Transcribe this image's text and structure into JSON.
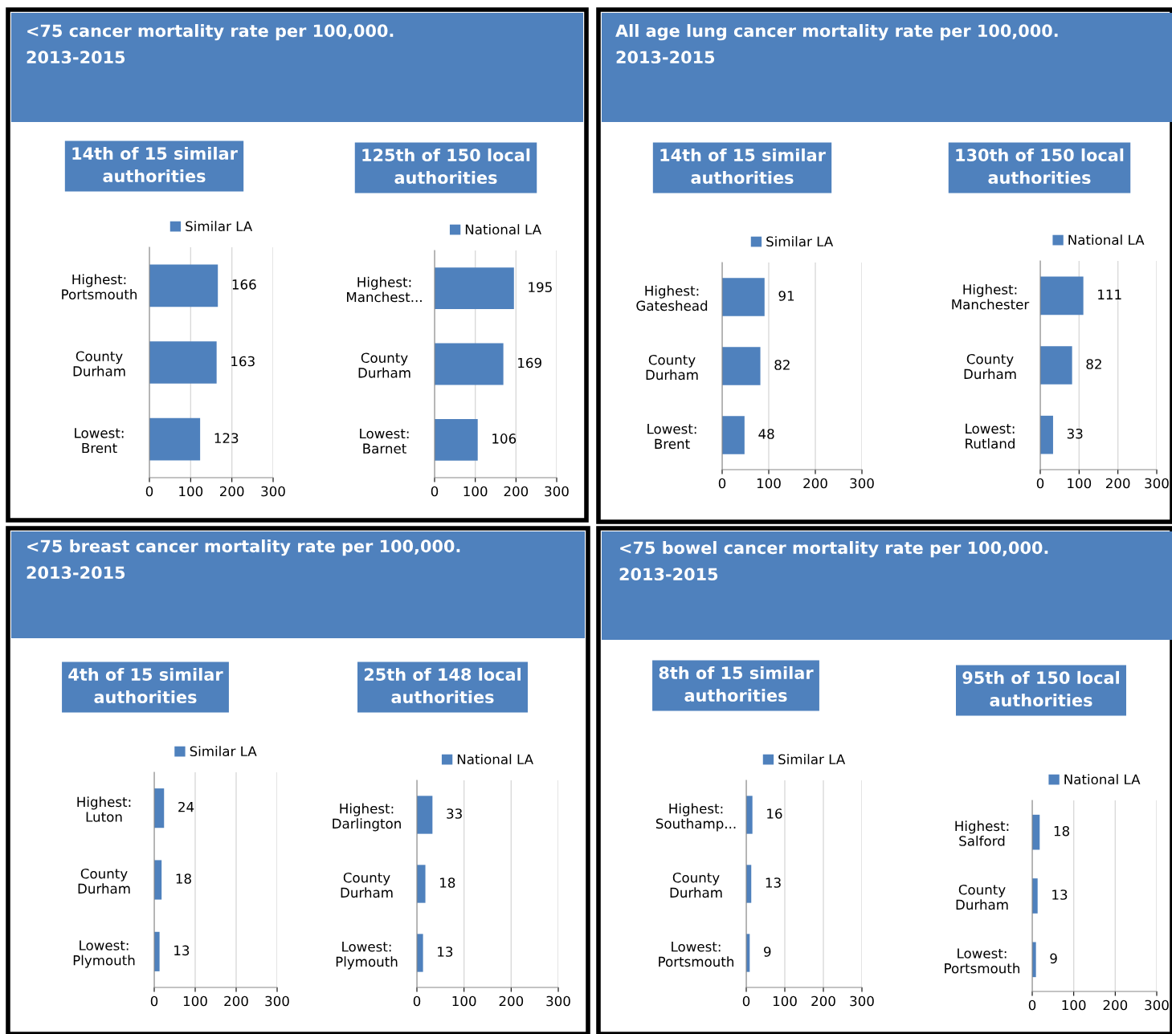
{
  "chart_data": [
    {
      "type": "bar",
      "orientation": "horizontal",
      "title": "14th of 15 similar\nauthorities",
      "annotations": [
        "<75 cancer mortality rate per 100,000.\n2013-2015"
      ],
      "categories": [
        "Highest:\nPortsmouth",
        "County\nDurham",
        "Lowest:\nBrent"
      ],
      "series": [
        {
          "name": "Similar LA",
          "color": "#4f81bd",
          "values": [
            166,
            163,
            123
          ]
        }
      ],
      "xlim": [
        0,
        300
      ],
      "xticks": [
        0,
        100,
        200,
        300
      ],
      "grid": "x",
      "legend": "top",
      "data_labels": true
    },
    {
      "type": "bar",
      "orientation": "horizontal",
      "title": "125th of 150 local\nauthorities",
      "categories": [
        "Highest:\nManchest...",
        "County\nDurham",
        "Lowest:\nBarnet"
      ],
      "series": [
        {
          "name": "National LA",
          "color": "#4f81bd",
          "values": [
            195,
            169,
            106
          ]
        }
      ],
      "xlim": [
        0,
        300
      ],
      "xticks": [
        0,
        100,
        200,
        300
      ],
      "grid": "x",
      "legend": "top",
      "data_labels": true
    },
    {
      "type": "bar",
      "orientation": "horizontal",
      "title": "14th of 15 similar\nauthorities",
      "annotations": [
        "All age lung cancer mortality rate per 100,000.\n2013-2015"
      ],
      "categories": [
        "Highest:\nGateshead",
        "County\nDurham",
        "Lowest:\nBrent"
      ],
      "series": [
        {
          "name": "Similar LA",
          "color": "#4f81bd",
          "values": [
            91,
            82,
            48
          ]
        }
      ],
      "xlim": [
        0,
        300
      ],
      "xticks": [
        0,
        100,
        200,
        300
      ],
      "grid": "x",
      "legend": "top",
      "data_labels": true
    },
    {
      "type": "bar",
      "orientation": "horizontal",
      "title": "130th of 150 local\nauthorities",
      "categories": [
        "Highest:\nManchester",
        "County\nDurham",
        "Lowest:\nRutland"
      ],
      "series": [
        {
          "name": "National LA",
          "color": "#4f81bd",
          "values": [
            111,
            82,
            33
          ]
        }
      ],
      "xlim": [
        0,
        300
      ],
      "xticks": [
        0,
        100,
        200,
        300
      ],
      "grid": "x",
      "legend": "top",
      "data_labels": true
    },
    {
      "type": "bar",
      "orientation": "horizontal",
      "title": "4th of 15 similar\nauthorities",
      "annotations": [
        "<75 breast cancer mortality rate per 100,000.\n2013-2015"
      ],
      "categories": [
        "Highest:\nLuton",
        "County\nDurham",
        "Lowest:\nPlymouth"
      ],
      "series": [
        {
          "name": "Similar LA",
          "color": "#4f81bd",
          "values": [
            24,
            18,
            13
          ]
        }
      ],
      "xlim": [
        0,
        300
      ],
      "xticks": [
        0,
        100,
        200,
        300
      ],
      "grid": "x",
      "legend": "top",
      "data_labels": true
    },
    {
      "type": "bar",
      "orientation": "horizontal",
      "title": "25th of 148 local\nauthorities",
      "categories": [
        "Highest:\nDarlington",
        "County\nDurham",
        "Lowest:\nPlymouth"
      ],
      "series": [
        {
          "name": "National LA",
          "color": "#4f81bd",
          "values": [
            33,
            18,
            13
          ]
        }
      ],
      "xlim": [
        0,
        300
      ],
      "xticks": [
        0,
        100,
        200,
        300
      ],
      "grid": "x",
      "legend": "top",
      "data_labels": true
    },
    {
      "type": "bar",
      "orientation": "horizontal",
      "title": "8th of 15 similar\nauthorities",
      "annotations": [
        "<75 bowel cancer mortality rate per 100,000.\n2013-2015"
      ],
      "categories": [
        "Highest:\nSouthamp...",
        "County\nDurham",
        "Lowest:\nPortsmouth"
      ],
      "series": [
        {
          "name": "Similar LA",
          "color": "#4f81bd",
          "values": [
            16,
            13,
            9
          ]
        }
      ],
      "xlim": [
        0,
        300
      ],
      "xticks": [
        0,
        100,
        200,
        300
      ],
      "grid": "x",
      "legend": "top",
      "data_labels": true
    },
    {
      "type": "bar",
      "orientation": "horizontal",
      "title": "95th of 150 local\nauthorities",
      "categories": [
        "Highest:\nSalford",
        "County\nDurham",
        "Lowest:\nPortsmouth"
      ],
      "series": [
        {
          "name": "National LA",
          "color": "#4f81bd",
          "values": [
            18,
            13,
            9
          ]
        }
      ],
      "xlim": [
        0,
        300
      ],
      "xticks": [
        0,
        100,
        200,
        300
      ],
      "grid": "x",
      "legend": "top",
      "data_labels": true
    }
  ]
}
